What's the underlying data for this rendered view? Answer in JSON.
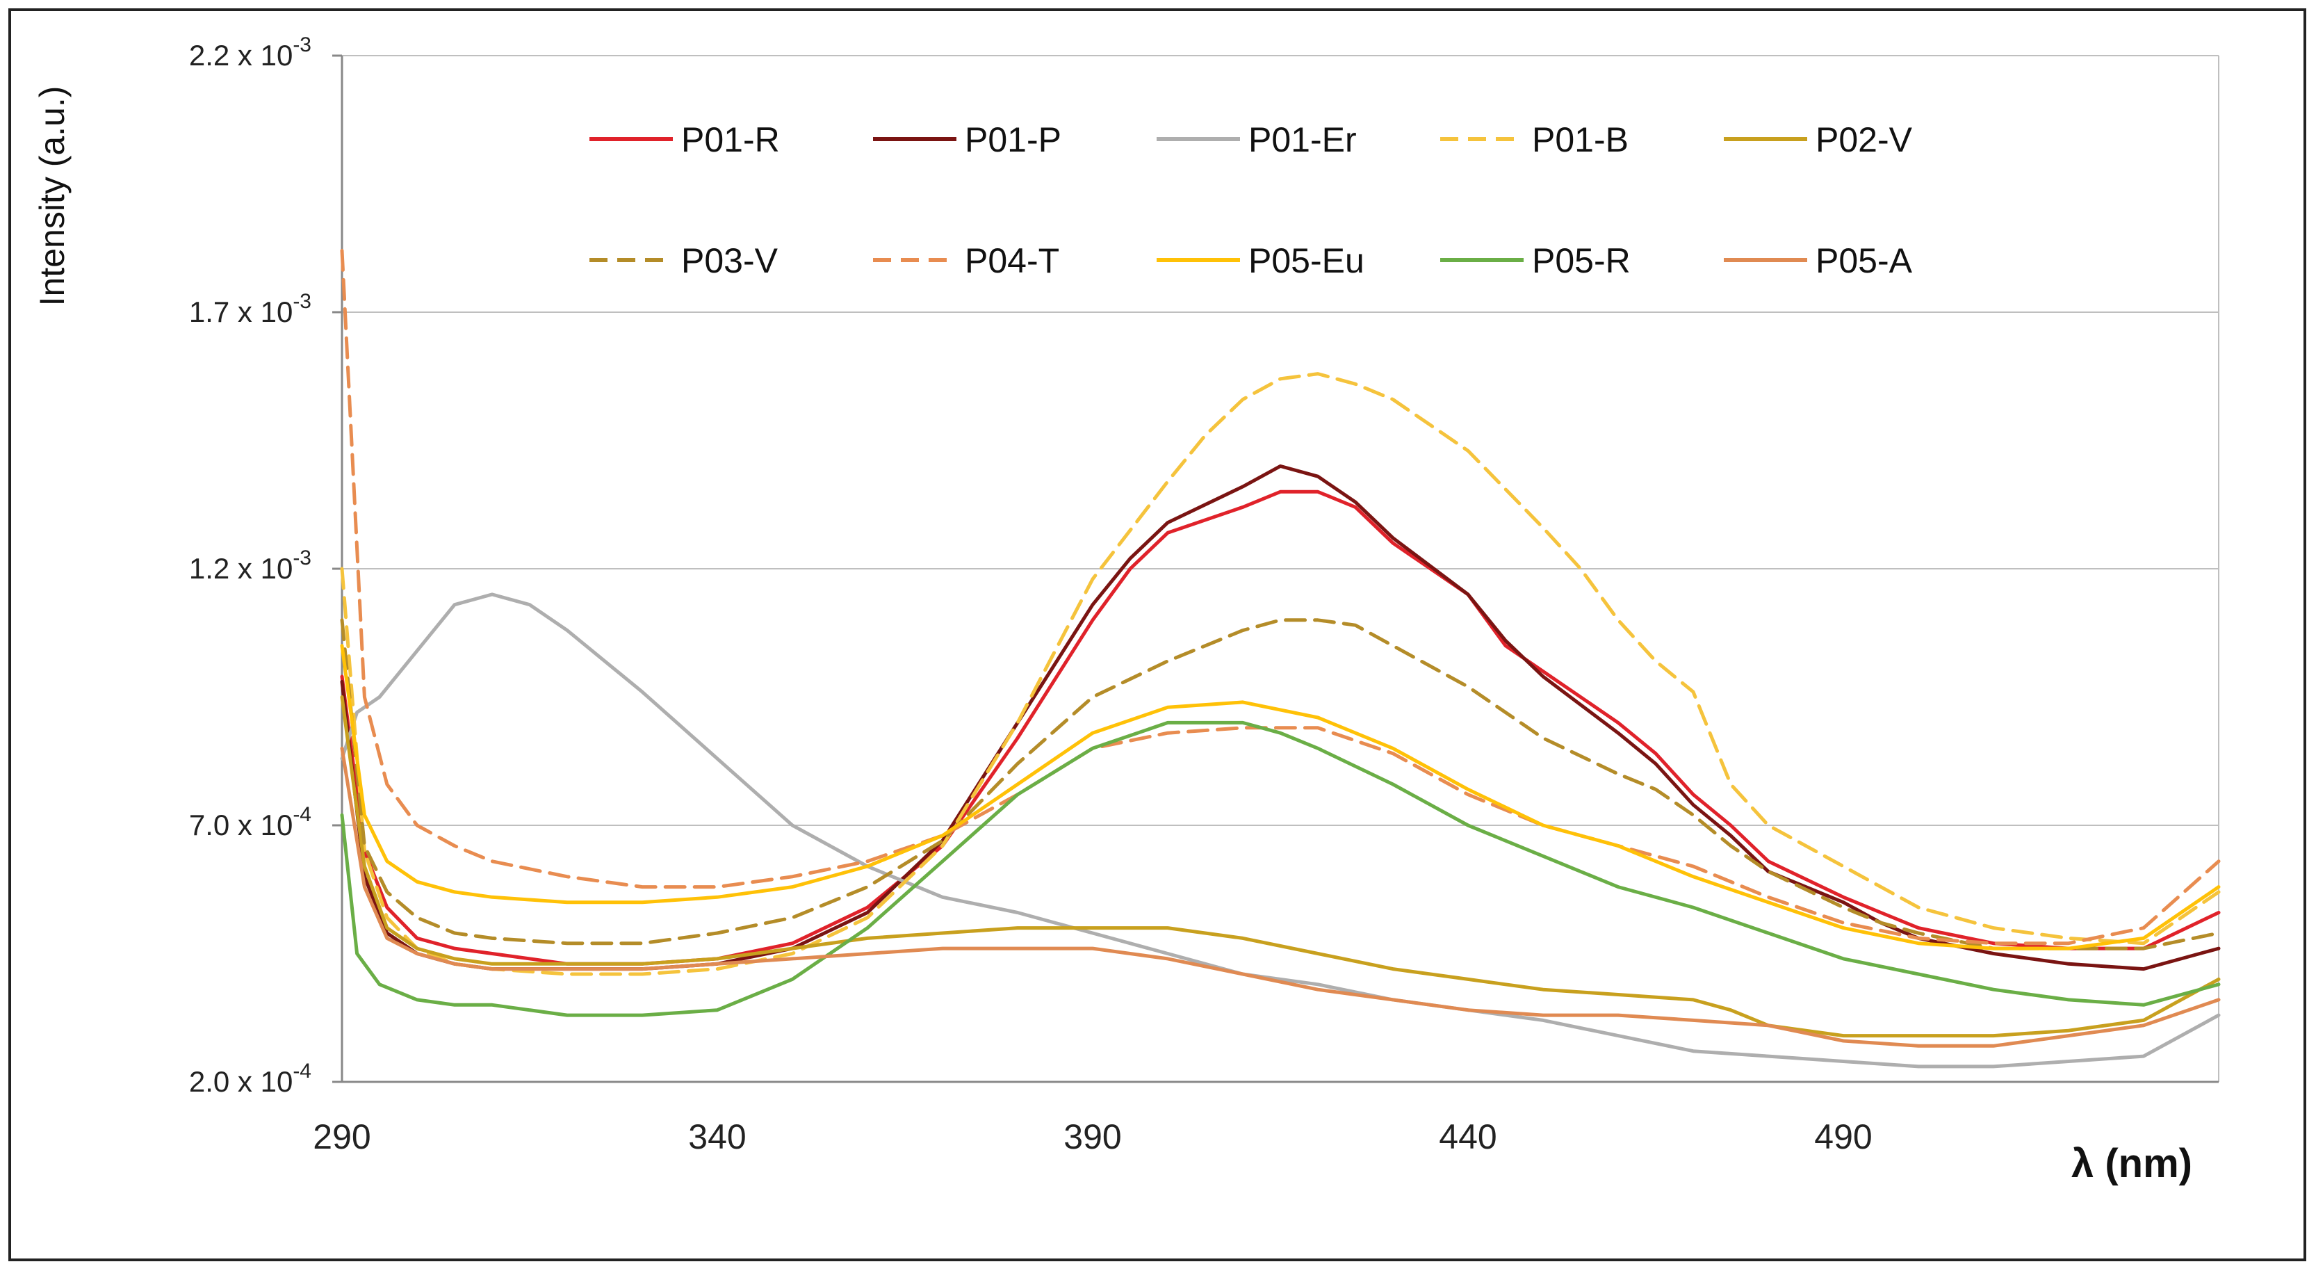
{
  "chart_data": {
    "type": "line",
    "title": "",
    "xlabel": "λ (nm)",
    "ylabel": "Intensity (a.u.)",
    "xlim": [
      290,
      540
    ],
    "ylim": [
      0.0002,
      0.0022
    ],
    "grid": true,
    "legend_position": "top",
    "x_ticks": [
      {
        "value": 290,
        "label": "290"
      },
      {
        "value": 340,
        "label": "340"
      },
      {
        "value": 390,
        "label": "390"
      },
      {
        "value": 440,
        "label": "440"
      },
      {
        "value": 490,
        "label": "490"
      }
    ],
    "y_ticks": [
      {
        "value": 0.0002,
        "mantissa": "2.0 x 10",
        "exp": "-4"
      },
      {
        "value": 0.0007,
        "mantissa": "7.0 x 10",
        "exp": "-4"
      },
      {
        "value": 0.0012,
        "mantissa": "1.2 x 10",
        "exp": "-3"
      },
      {
        "value": 0.0017,
        "mantissa": "1.7 x 10",
        "exp": "-3"
      },
      {
        "value": 0.0022,
        "mantissa": "2.2 x 10",
        "exp": "-3"
      }
    ],
    "series": [
      {
        "name": "P01-R",
        "color": "#E0222A",
        "dash": "solid",
        "x": [
          290,
          293,
          296,
          300,
          305,
          310,
          320,
          330,
          340,
          350,
          360,
          370,
          380,
          390,
          395,
          400,
          410,
          415,
          420,
          425,
          430,
          440,
          445,
          450,
          460,
          465,
          470,
          475,
          480,
          490,
          495,
          500,
          510,
          520,
          530,
          540
        ],
        "y": [
          0.00099,
          0.00065,
          0.00054,
          0.00048,
          0.00046,
          0.00045,
          0.00043,
          0.00043,
          0.00044,
          0.00047,
          0.00054,
          0.00066,
          0.00087,
          0.0011,
          0.0012,
          0.00127,
          0.00132,
          0.00135,
          0.00135,
          0.00132,
          0.00125,
          0.00115,
          0.00105,
          0.001,
          0.0009,
          0.00084,
          0.00076,
          0.0007,
          0.00063,
          0.00056,
          0.00053,
          0.0005,
          0.00047,
          0.00046,
          0.00046,
          0.00053
        ]
      },
      {
        "name": "P01-P",
        "color": "#7A1412",
        "dash": "solid",
        "x": [
          290,
          293,
          296,
          300,
          305,
          310,
          320,
          330,
          340,
          350,
          360,
          370,
          380,
          390,
          395,
          400,
          410,
          415,
          420,
          425,
          430,
          440,
          445,
          450,
          460,
          465,
          470,
          475,
          480,
          490,
          495,
          500,
          510,
          520,
          530,
          540
        ],
        "y": [
          0.00098,
          0.0006,
          0.00049,
          0.00045,
          0.00043,
          0.00042,
          0.00042,
          0.00042,
          0.00043,
          0.00046,
          0.00053,
          0.00067,
          0.0009,
          0.00113,
          0.00122,
          0.00129,
          0.00136,
          0.0014,
          0.00138,
          0.00133,
          0.00126,
          0.00115,
          0.00106,
          0.00099,
          0.00088,
          0.00082,
          0.00074,
          0.00068,
          0.00061,
          0.00055,
          0.00051,
          0.00048,
          0.00045,
          0.00043,
          0.00042,
          0.00046
        ]
      },
      {
        "name": "P01-Er",
        "color": "#AEAEAE",
        "dash": "solid",
        "x": [
          290,
          292,
          295,
          300,
          305,
          310,
          315,
          320,
          330,
          340,
          350,
          360,
          370,
          380,
          390,
          400,
          410,
          420,
          430,
          440,
          450,
          460,
          470,
          480,
          490,
          500,
          510,
          520,
          530,
          540
        ],
        "y": [
          0.00083,
          0.00092,
          0.00095,
          0.00104,
          0.00113,
          0.00115,
          0.00113,
          0.00108,
          0.00096,
          0.00083,
          0.0007,
          0.00062,
          0.00056,
          0.00053,
          0.00049,
          0.00045,
          0.00041,
          0.00039,
          0.00036,
          0.00034,
          0.00032,
          0.00029,
          0.00026,
          0.00025,
          0.00024,
          0.00023,
          0.00023,
          0.00024,
          0.00025,
          0.00033
        ]
      },
      {
        "name": "P01-B",
        "color": "#F5C33C",
        "dash": "dashed",
        "x": [
          290,
          293,
          296,
          300,
          305,
          310,
          320,
          330,
          340,
          350,
          360,
          370,
          380,
          390,
          400,
          405,
          410,
          415,
          420,
          425,
          430,
          440,
          450,
          455,
          460,
          465,
          470,
          475,
          480,
          490,
          495,
          500,
          510,
          520,
          530,
          540
        ],
        "y": [
          0.0012,
          0.00065,
          0.00052,
          0.00046,
          0.00043,
          0.00042,
          0.00041,
          0.00041,
          0.00042,
          0.00045,
          0.00052,
          0.00066,
          0.0009,
          0.00118,
          0.00137,
          0.00146,
          0.00153,
          0.00157,
          0.00158,
          0.00156,
          0.00153,
          0.00143,
          0.00128,
          0.0012,
          0.0011,
          0.00102,
          0.00096,
          0.00078,
          0.0007,
          0.00062,
          0.00058,
          0.00054,
          0.0005,
          0.00048,
          0.00047,
          0.00057
        ]
      },
      {
        "name": "P02-V",
        "color": "#C8A01E",
        "dash": "solid",
        "x": [
          290,
          293,
          296,
          300,
          305,
          310,
          320,
          330,
          340,
          350,
          360,
          370,
          380,
          390,
          400,
          410,
          420,
          430,
          440,
          450,
          460,
          470,
          475,
          480,
          490,
          500,
          510,
          520,
          530,
          540
        ],
        "y": [
          0.00095,
          0.00062,
          0.0005,
          0.00046,
          0.00044,
          0.00043,
          0.00043,
          0.00043,
          0.00044,
          0.00046,
          0.00048,
          0.00049,
          0.0005,
          0.0005,
          0.0005,
          0.00048,
          0.00045,
          0.00042,
          0.0004,
          0.00038,
          0.00037,
          0.00036,
          0.00034,
          0.00031,
          0.00029,
          0.00029,
          0.00029,
          0.0003,
          0.00032,
          0.0004
        ]
      },
      {
        "name": "P03-V",
        "color": "#B48C28",
        "dash": "dashed",
        "x": [
          290,
          293,
          296,
          300,
          305,
          310,
          320,
          330,
          340,
          350,
          360,
          370,
          380,
          390,
          400,
          410,
          415,
          420,
          425,
          430,
          440,
          450,
          460,
          465,
          470,
          475,
          480,
          490,
          495,
          500,
          510,
          520,
          530,
          540
        ],
        "y": [
          0.0011,
          0.00066,
          0.00057,
          0.00052,
          0.00049,
          0.00048,
          0.00047,
          0.00047,
          0.00049,
          0.00052,
          0.00058,
          0.00067,
          0.00082,
          0.00095,
          0.00102,
          0.00108,
          0.0011,
          0.0011,
          0.00109,
          0.00105,
          0.00097,
          0.00087,
          0.0008,
          0.00077,
          0.00072,
          0.00066,
          0.00061,
          0.00054,
          0.00051,
          0.00049,
          0.00046,
          0.00046,
          0.00046,
          0.00049
        ]
      },
      {
        "name": "P04-T",
        "color": "#E88C50",
        "dash": "dashed",
        "x": [
          290,
          293,
          296,
          300,
          305,
          310,
          320,
          330,
          340,
          350,
          360,
          370,
          380,
          390,
          400,
          410,
          420,
          430,
          440,
          450,
          460,
          470,
          480,
          490,
          500,
          510,
          520,
          530,
          540
        ],
        "y": [
          0.00182,
          0.00095,
          0.00078,
          0.0007,
          0.00066,
          0.00063,
          0.0006,
          0.00058,
          0.00058,
          0.0006,
          0.00063,
          0.00068,
          0.00076,
          0.00085,
          0.00088,
          0.00089,
          0.00089,
          0.00084,
          0.00076,
          0.0007,
          0.00066,
          0.00062,
          0.00056,
          0.00051,
          0.00048,
          0.00047,
          0.00047,
          0.0005,
          0.00063
        ]
      },
      {
        "name": "P05-Eu",
        "color": "#FFC107",
        "dash": "solid",
        "x": [
          290,
          293,
          296,
          300,
          305,
          310,
          320,
          330,
          340,
          350,
          360,
          370,
          380,
          390,
          400,
          410,
          420,
          430,
          440,
          450,
          460,
          470,
          480,
          490,
          500,
          510,
          520,
          530,
          540
        ],
        "y": [
          0.00105,
          0.00072,
          0.00063,
          0.00059,
          0.00057,
          0.00056,
          0.00055,
          0.00055,
          0.00056,
          0.00058,
          0.00062,
          0.00068,
          0.00078,
          0.00088,
          0.00093,
          0.00094,
          0.00091,
          0.00085,
          0.00077,
          0.0007,
          0.00066,
          0.0006,
          0.00055,
          0.0005,
          0.00047,
          0.00046,
          0.00046,
          0.00048,
          0.00058
        ]
      },
      {
        "name": "P05-R",
        "color": "#6AAE46",
        "dash": "solid",
        "x": [
          290,
          292,
          295,
          300,
          305,
          310,
          320,
          330,
          340,
          350,
          360,
          370,
          380,
          390,
          400,
          410,
          415,
          420,
          430,
          440,
          450,
          460,
          470,
          480,
          490,
          500,
          510,
          520,
          530,
          540
        ],
        "y": [
          0.00072,
          0.00045,
          0.00039,
          0.00036,
          0.00035,
          0.00035,
          0.00033,
          0.00033,
          0.00034,
          0.0004,
          0.0005,
          0.00063,
          0.00076,
          0.00085,
          0.0009,
          0.0009,
          0.00088,
          0.00085,
          0.00078,
          0.0007,
          0.00064,
          0.00058,
          0.00054,
          0.00049,
          0.00044,
          0.00041,
          0.00038,
          0.00036,
          0.00035,
          0.00039
        ]
      },
      {
        "name": "P05-A",
        "color": "#E08A52",
        "dash": "solid",
        "x": [
          290,
          293,
          296,
          300,
          305,
          310,
          320,
          330,
          340,
          350,
          360,
          370,
          380,
          390,
          400,
          410,
          420,
          430,
          440,
          450,
          460,
          470,
          480,
          490,
          500,
          510,
          520,
          530,
          540
        ],
        "y": [
          0.00085,
          0.00058,
          0.00048,
          0.00045,
          0.00043,
          0.00042,
          0.00042,
          0.00042,
          0.00043,
          0.00044,
          0.00045,
          0.00046,
          0.00046,
          0.00046,
          0.00044,
          0.00041,
          0.00038,
          0.00036,
          0.00034,
          0.00033,
          0.00033,
          0.00032,
          0.00031,
          0.00028,
          0.00027,
          0.00027,
          0.00029,
          0.00031,
          0.00036
        ]
      }
    ]
  }
}
